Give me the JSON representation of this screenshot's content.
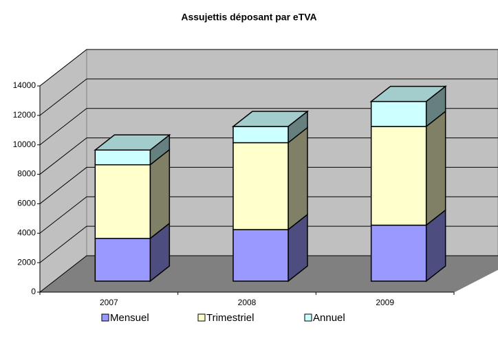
{
  "chart_data": {
    "type": "bar",
    "stacked": true,
    "title": "Assujettis déposant par eTVA",
    "categories": [
      "2007",
      "2008",
      "2009"
    ],
    "series": [
      {
        "name": "Mensuel",
        "color": "#9999ff",
        "values": [
          2900,
          3500,
          3800
        ]
      },
      {
        "name": "Trimestriel",
        "color": "#ffffcc",
        "values": [
          5000,
          5900,
          6700
        ]
      },
      {
        "name": "Annuel",
        "color": "#ccffff",
        "values": [
          1000,
          1100,
          1700
        ]
      }
    ],
    "ylim": [
      0,
      14000
    ],
    "yticks": [
      0,
      2000,
      4000,
      6000,
      8000,
      10000,
      12000,
      14000
    ],
    "grid": true
  }
}
